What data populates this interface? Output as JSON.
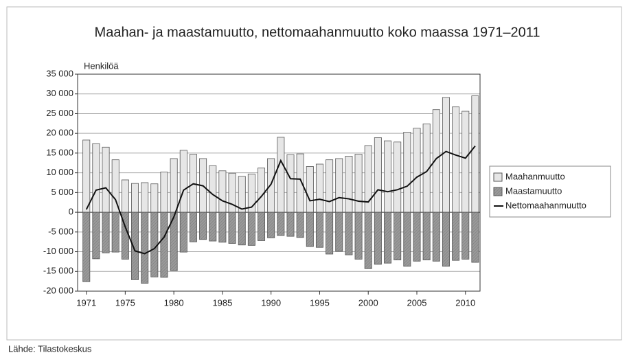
{
  "chart_data": {
    "type": "bar",
    "title": "Maahan- ja maastamuutto, nettomaahanmuutto koko maassa 1971–2011",
    "y_label": "Henkilöä",
    "source": "Lähde: Tilastokeskus",
    "x": [
      1971,
      1972,
      1973,
      1974,
      1975,
      1976,
      1977,
      1978,
      1979,
      1980,
      1981,
      1982,
      1983,
      1984,
      1985,
      1986,
      1987,
      1988,
      1989,
      1990,
      1991,
      1992,
      1993,
      1994,
      1995,
      1996,
      1997,
      1998,
      1999,
      2000,
      2001,
      2002,
      2003,
      2004,
      2005,
      2006,
      2007,
      2008,
      2009,
      2010,
      2011
    ],
    "xlim": [
      1970.1,
      2011.5
    ],
    "xticks": [
      1971,
      1975,
      1980,
      1985,
      1990,
      1995,
      2000,
      2005,
      2010
    ],
    "ylim": [
      -20000,
      35000
    ],
    "yticks": [
      {
        "value": -20000,
        "label": "-20 000"
      },
      {
        "value": -15000,
        "label": "-15 000"
      },
      {
        "value": -10000,
        "label": "-10 000"
      },
      {
        "value": -5000,
        "label": "-5 000"
      },
      0,
      {
        "value": 5000,
        "label": "5 000"
      },
      {
        "value": 10000,
        "label": "10 000"
      },
      {
        "value": 15000,
        "label": "15 000"
      },
      {
        "value": 20000,
        "label": "20 000"
      },
      {
        "value": 25000,
        "label": "25 000"
      },
      {
        "value": 30000,
        "label": "30 000"
      },
      {
        "value": 35000,
        "label": "35 000"
      }
    ],
    "grid": true,
    "legend": "right",
    "series": [
      {
        "name": "Maahanmuutto",
        "color": "#e6e6e6",
        "type": "bar",
        "values": [
          18300,
          17400,
          16500,
          13300,
          8200,
          7300,
          7500,
          7200,
          10200,
          13600,
          15700,
          14700,
          13600,
          11800,
          10500,
          9900,
          9100,
          9700,
          11200,
          13600,
          19000,
          14600,
          14800,
          11600,
          12200,
          13300,
          13600,
          14200,
          14700,
          16900,
          18900,
          18100,
          17800,
          20300,
          21300,
          22400,
          26000,
          29100,
          26700,
          25600,
          29500
        ]
      },
      {
        "name": "Maastamuutto",
        "color": "#9a9a9a",
        "type": "bar",
        "values": [
          -17600,
          -11800,
          -10300,
          -10100,
          -11900,
          -17100,
          -18000,
          -16400,
          -16500,
          -14800,
          -10100,
          -7500,
          -6900,
          -7300,
          -7600,
          -7900,
          -8300,
          -8400,
          -7200,
          -6500,
          -5900,
          -6100,
          -6400,
          -8700,
          -8900,
          -10600,
          -9900,
          -10800,
          -11900,
          -14300,
          -13200,
          -12900,
          -12100,
          -13700,
          -12400,
          -12100,
          -12400,
          -13700,
          -12200,
          -11900,
          -12700
        ]
      },
      {
        "name": "Nettomaahanmuutto",
        "color": "#111111",
        "type": "line",
        "values": [
          700,
          5600,
          6200,
          3200,
          -3700,
          -9800,
          -10500,
          -9200,
          -6300,
          -1200,
          5600,
          7200,
          6700,
          4500,
          2900,
          2000,
          800,
          1300,
          4000,
          7100,
          13100,
          8500,
          8400,
          2900,
          3300,
          2700,
          3700,
          3400,
          2800,
          2600,
          5700,
          5200,
          5700,
          6600,
          8900,
          10300,
          13600,
          15400,
          14500,
          13700,
          16800
        ]
      }
    ]
  }
}
